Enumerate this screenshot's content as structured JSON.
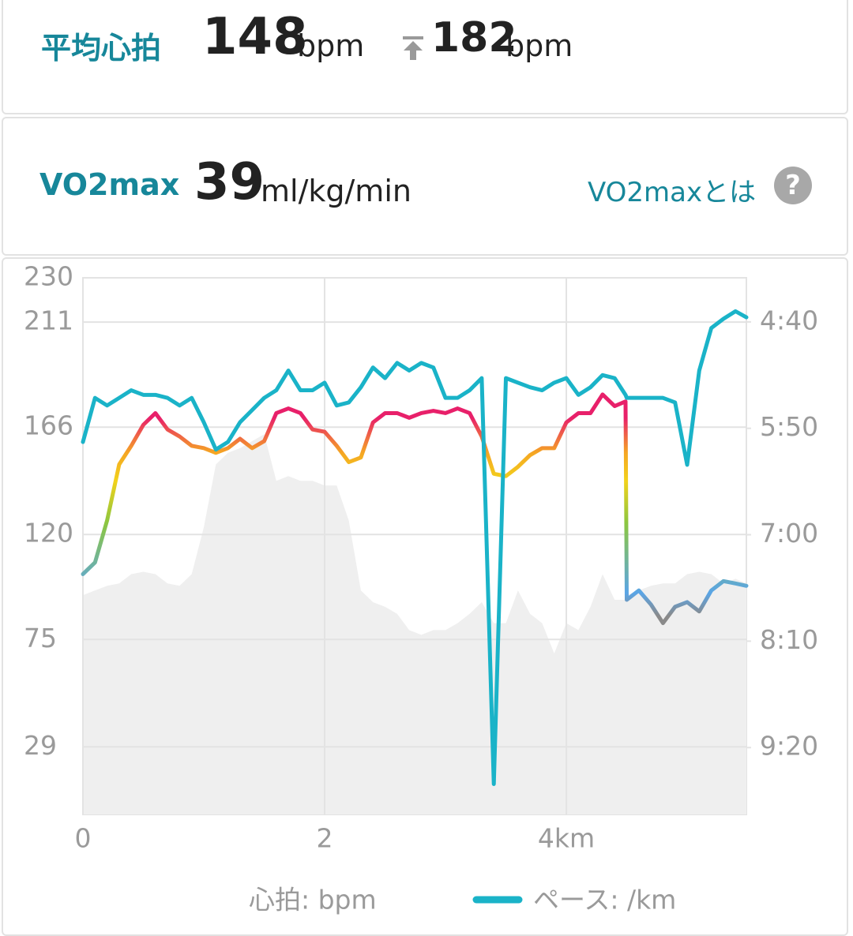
{
  "summary": {
    "label": "平均心拍",
    "avg": 148,
    "avg_unit": "bpm",
    "max": 182,
    "max_unit": "bpm"
  },
  "vo2": {
    "label": "VO2max",
    "value": 39,
    "unit": "ml/kg/min",
    "link": "VO2maxとは",
    "help_icon": "?"
  },
  "chart_data": {
    "type": "line",
    "x": [
      0,
      0.1,
      0.2,
      0.3,
      0.4,
      0.5,
      0.6,
      0.7,
      0.8,
      0.9,
      1.0,
      1.1,
      1.2,
      1.3,
      1.4,
      1.5,
      1.6,
      1.7,
      1.8,
      1.9,
      2.0,
      2.1,
      2.2,
      2.3,
      2.4,
      2.5,
      2.6,
      2.7,
      2.8,
      2.9,
      3.0,
      3.1,
      3.2,
      3.3,
      3.4,
      3.5,
      3.6,
      3.7,
      3.8,
      3.9,
      4.0,
      4.1,
      4.2,
      4.3,
      4.4,
      4.49,
      4.5,
      4.6,
      4.7,
      4.8,
      4.9,
      5.0,
      5.1,
      5.2,
      5.3,
      5.4,
      5.49
    ],
    "xlim": [
      0,
      5.49
    ],
    "xticks": [
      0,
      2,
      {
        "value": 4,
        "label": "4km"
      }
    ],
    "ylim": [
      0,
      230
    ],
    "yticks": [
      230,
      211,
      166,
      120,
      75,
      29
    ],
    "y2lim": [
      604,
      251
    ],
    "y2ticks": [
      {
        "value": 280,
        "label": "4:40"
      },
      {
        "value": 350,
        "label": "5:50"
      },
      {
        "value": 420,
        "label": "7:00"
      },
      {
        "value": 490,
        "label": "8:10"
      },
      {
        "value": 560,
        "label": "9:20"
      }
    ],
    "grid": true,
    "area": {
      "color": "#efefef",
      "values": [
        94,
        96,
        98,
        99,
        103,
        104,
        103,
        99,
        98,
        103,
        123,
        150,
        155,
        157,
        160,
        163,
        143,
        145,
        143,
        143,
        141,
        141,
        126,
        96,
        91,
        89,
        86,
        79,
        77,
        79,
        79,
        82,
        86,
        91,
        82,
        82,
        96,
        86,
        82,
        69,
        82,
        79,
        89,
        103,
        92,
        92,
        94,
        96,
        98,
        99,
        99,
        103,
        104,
        103,
        99,
        101,
        99
      ]
    },
    "series": [
      {
        "name": "心拍: bpm",
        "color_scale": [
          {
            "value": 85,
            "color": "#8a8a8a"
          },
          {
            "value": 95,
            "color": "#5aa5e6"
          },
          {
            "value": 125,
            "color": "#8cc63f"
          },
          {
            "value": 143,
            "color": "#f2d21b"
          },
          {
            "value": 155,
            "color": "#f5a623"
          },
          {
            "value": 170,
            "color": "#e8206a"
          }
        ],
        "values": [
          103,
          108,
          126,
          150,
          158,
          167,
          172,
          165,
          162,
          158,
          157,
          155,
          157,
          161,
          157,
          160,
          172,
          174,
          172,
          165,
          164,
          158,
          151,
          153,
          168,
          172,
          172,
          170,
          172,
          173,
          172,
          174,
          172,
          162,
          146,
          145,
          149,
          154,
          157,
          157,
          168,
          172,
          172,
          180,
          175,
          177,
          92,
          96,
          90,
          82,
          89,
          91,
          87,
          96,
          100,
          99,
          98
        ]
      },
      {
        "name": "ペース: /km",
        "color": "#1ab3c8",
        "axis": "y2",
        "values": [
          359,
          330,
          335,
          330,
          325,
          328,
          328,
          330,
          335,
          330,
          346,
          364,
          359,
          346,
          338,
          330,
          325,
          312,
          325,
          325,
          320,
          335,
          333,
          323,
          310,
          317,
          307,
          312,
          307,
          310,
          330,
          330,
          325,
          317,
          584,
          317,
          320,
          323,
          325,
          320,
          317,
          328,
          323,
          315,
          317,
          328,
          330,
          330,
          330,
          330,
          333,
          374,
          312,
          284,
          278,
          273,
          277
        ]
      }
    ]
  }
}
